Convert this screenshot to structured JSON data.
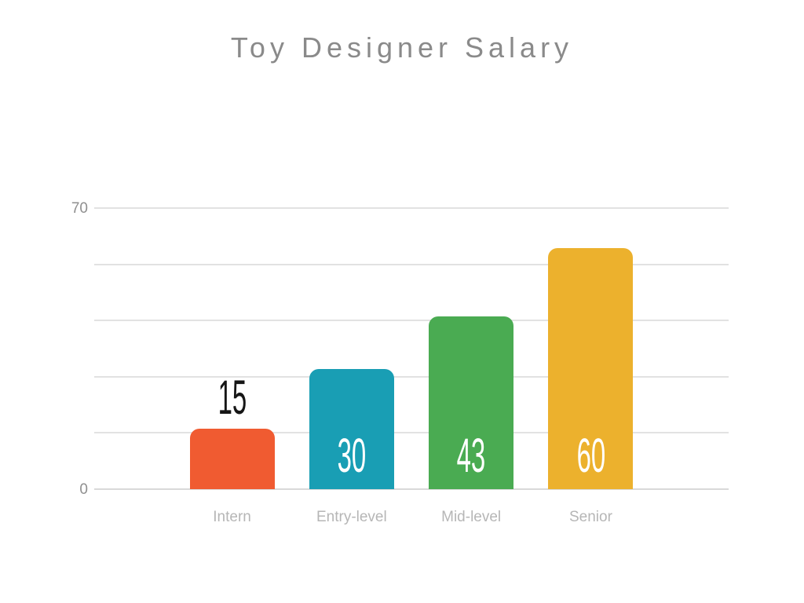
{
  "slide": {
    "title": "Toy Designer Salary"
  },
  "chart_data": {
    "type": "bar",
    "title": "Toy Designer Salary",
    "categories": [
      "Intern",
      "Entry-level",
      "Mid-level",
      "Senior"
    ],
    "values": [
      15,
      30,
      43,
      60
    ],
    "bar_colors": [
      "#F05B31",
      "#199EB4",
      "#4AAB52",
      "#ECB12D"
    ],
    "value_labels": [
      "15",
      "30",
      "43",
      "60"
    ],
    "value_label_positions": [
      "above",
      "inside",
      "inside",
      "inside"
    ],
    "value_label_colors": [
      "#161616",
      "#ffffff",
      "#ffffff",
      "#ffffff"
    ],
    "xlabel": "",
    "ylabel": "",
    "ylim": [
      0,
      70
    ],
    "yticks_shown": [
      {
        "value": 0,
        "label": "0"
      },
      {
        "value": 70,
        "label": "70"
      }
    ],
    "gridline_values": [
      0,
      14,
      28,
      42,
      56,
      70
    ],
    "grid": true,
    "legend": false,
    "colors": {
      "title_text": "#8a8a8a",
      "gridline": "#e2e2e2",
      "axis_line": "#d9d9d9",
      "ytick_text": "#8f8f8f",
      "xtick_text": "#b6b6b6",
      "background": "#ffffff"
    }
  }
}
